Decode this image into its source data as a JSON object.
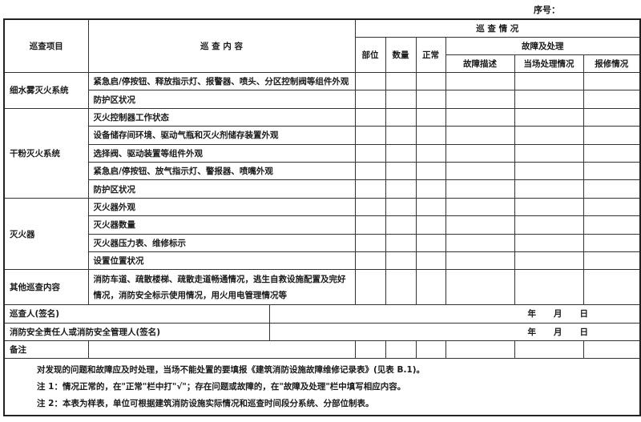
{
  "serial_label": "序号：",
  "header": {
    "item": "巡查项目",
    "content": "巡 查 内 容",
    "status": "巡 查 情 况",
    "location": "部位",
    "quantity": "数量",
    "normal": "正常",
    "fault_handling": "故障及处理",
    "fault_desc": "故障描述",
    "onsite": "当场处理情况",
    "repair": "报修情况"
  },
  "groups": [
    {
      "item": "细水雾灭火系统",
      "contents": [
        "紧急启/停按钮、释放指示灯、报警器、喷头、分区控制阀等组件外观",
        "防护区状况"
      ]
    },
    {
      "item": "干粉灭火系统",
      "contents": [
        "灭火控制器工作状态",
        "设备储存间环境、驱动气瓶和灭火剂储存装置外观",
        "选择阀、驱动装置等组件外观",
        "紧急启/停按钮、放气指示灯、警报器、喷嘴外观",
        "防护区状况"
      ]
    },
    {
      "item": "灭火器",
      "contents": [
        "灭火器外观",
        "灭火器数量",
        "灭火器压力表、维修标示",
        "设置位置状况"
      ]
    },
    {
      "item": "其他巡查内容",
      "contents": [
        "消防车道、疏散楼梯、疏散走道畅通情况，逃生自救设施配置及完好情况，消防安全标示使用情况，用火用电管理情况等"
      ]
    }
  ],
  "signatures": {
    "inspector": "巡查人(签名)",
    "manager": "消防安全责任人或消防安全管理人(签名)",
    "year": "年",
    "month": "月",
    "day": "日",
    "remarks": "备注"
  },
  "notes": [
    "对发现的问题和故障应及时处理，当场不能处置的要填报《建筑消防设施故障维修记录表》(见表 B.1)。",
    "注 1：情况正常的，在\"正常\"栏中打\"√\"；存在问题或故障的，在\"故障及处理\"栏中填写相应内容。",
    "注 2：本表为样表，单位可根据建筑消防设施实际情况和巡查时间段分系统、分部位制表。"
  ]
}
